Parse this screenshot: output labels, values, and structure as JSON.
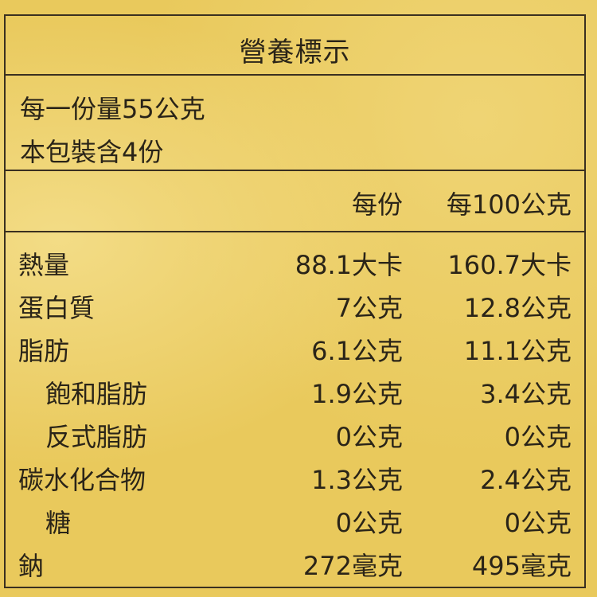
{
  "title": "營養標示",
  "serving_size": "每一份量55公克",
  "servings_per_package": "本包裝含4份",
  "columns": {
    "per_serving": "每份",
    "per_100g": "每100公克"
  },
  "rows": [
    {
      "name": "熱量",
      "per_serving": "88.1大卡",
      "per_100g": "160.7大卡",
      "indent": false
    },
    {
      "name": "蛋白質",
      "per_serving": "7公克",
      "per_100g": "12.8公克",
      "indent": false
    },
    {
      "name": "脂肪",
      "per_serving": "6.1公克",
      "per_100g": "11.1公克",
      "indent": false
    },
    {
      "name": "飽和脂肪",
      "per_serving": "1.9公克",
      "per_100g": "3.4公克",
      "indent": true
    },
    {
      "name": "反式脂肪",
      "per_serving": "0公克",
      "per_100g": "0公克",
      "indent": true
    },
    {
      "name": "碳水化合物",
      "per_serving": "1.3公克",
      "per_100g": "2.4公克",
      "indent": false
    },
    {
      "name": "糖",
      "per_serving": "0公克",
      "per_100g": "0公克",
      "indent": true
    },
    {
      "name": "鈉",
      "per_serving": "272毫克",
      "per_100g": "495毫克",
      "indent": false
    }
  ]
}
